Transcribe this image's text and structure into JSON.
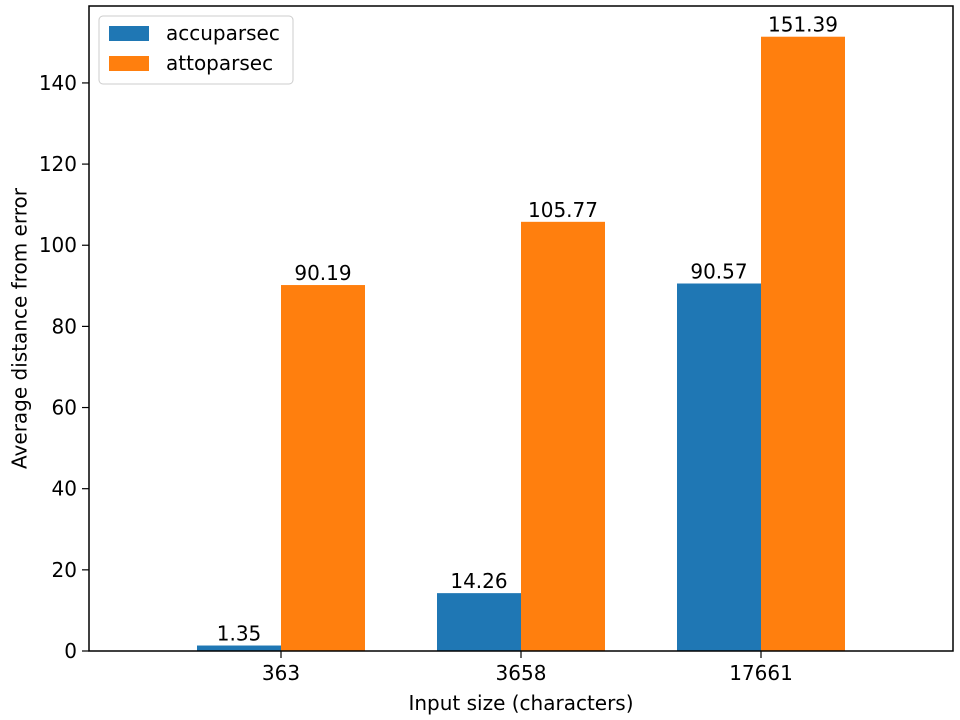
{
  "chart_data": {
    "type": "bar",
    "title": "",
    "xlabel": "Input size (characters)",
    "ylabel": "Average distance from error",
    "categories": [
      "363",
      "3658",
      "17661"
    ],
    "series": [
      {
        "name": "accuparsec",
        "color": "#1f77b4",
        "values": [
          1.35,
          14.26,
          90.57
        ],
        "labels": [
          "1.35",
          "14.26",
          "90.57"
        ]
      },
      {
        "name": "attoparsec",
        "color": "#ff7f0e",
        "values": [
          90.19,
          105.77,
          151.39
        ],
        "labels": [
          "90.19",
          "105.77",
          "151.39"
        ]
      }
    ],
    "ylim": [
      0,
      158.96
    ],
    "yticks": [
      0,
      20,
      40,
      60,
      80,
      100,
      120,
      140
    ],
    "grid": false,
    "legend": "top-left"
  }
}
